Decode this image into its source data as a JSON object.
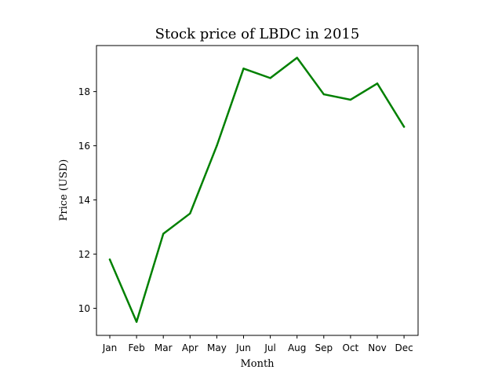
{
  "chart_data": {
    "type": "line",
    "title": "Stock price of LBDC in 2015",
    "xlabel": "Month",
    "ylabel": "Price (USD)",
    "categories": [
      "Jan",
      "Feb",
      "Mar",
      "Apr",
      "May",
      "Jun",
      "Jul",
      "Aug",
      "Sep",
      "Oct",
      "Nov",
      "Dec"
    ],
    "series": [
      {
        "values": [
          11.8,
          9.5,
          12.75,
          13.5,
          16.0,
          18.85,
          18.5,
          19.25,
          17.9,
          17.7,
          18.3,
          16.7
        ],
        "color": "#008000"
      }
    ],
    "yticks": [
      10,
      12,
      14,
      16,
      18
    ],
    "ylim": [
      9.0,
      19.7
    ],
    "grid": false
  }
}
